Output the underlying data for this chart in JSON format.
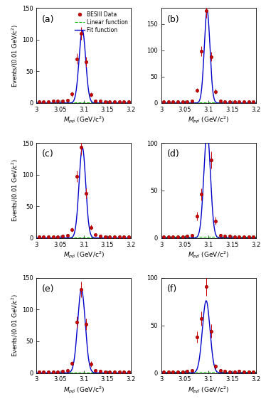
{
  "panels": [
    {
      "label": "(a)",
      "ylim": [
        0,
        150
      ],
      "yticks": [
        0,
        50,
        100,
        150
      ],
      "peak": 115,
      "peak_x": 3.097,
      "sigma": 0.007,
      "data_points": [
        [
          3.005,
          2,
          1.2
        ],
        [
          3.015,
          2,
          1.2
        ],
        [
          3.025,
          2,
          1.2
        ],
        [
          3.035,
          3,
          1.2
        ],
        [
          3.045,
          3,
          1.2
        ],
        [
          3.055,
          3,
          1.2
        ],
        [
          3.065,
          4,
          1.2
        ],
        [
          3.075,
          14,
          3.5
        ],
        [
          3.085,
          70,
          8
        ],
        [
          3.095,
          110,
          10
        ],
        [
          3.105,
          65,
          8
        ],
        [
          3.115,
          13,
          3.5
        ],
        [
          3.125,
          3,
          1.5
        ],
        [
          3.135,
          3,
          1.2
        ],
        [
          3.145,
          2,
          1.2
        ],
        [
          3.155,
          2,
          1.2
        ],
        [
          3.165,
          2,
          1.2
        ],
        [
          3.175,
          2,
          1.2
        ],
        [
          3.185,
          2,
          1.2
        ],
        [
          3.195,
          2,
          1.2
        ]
      ],
      "show_legend": true,
      "show_ylabel": true
    },
    {
      "label": "(b)",
      "ylim": [
        0,
        180
      ],
      "yticks": [
        0,
        50,
        100,
        150
      ],
      "peak": 175,
      "peak_x": 3.097,
      "sigma": 0.006,
      "data_points": [
        [
          3.005,
          2,
          1.2
        ],
        [
          3.015,
          2,
          1.2
        ],
        [
          3.025,
          2,
          1.2
        ],
        [
          3.035,
          2,
          1.2
        ],
        [
          3.045,
          2,
          1.2
        ],
        [
          3.055,
          3,
          1.2
        ],
        [
          3.065,
          4,
          1.2
        ],
        [
          3.075,
          24,
          4.5
        ],
        [
          3.085,
          98,
          9.5
        ],
        [
          3.095,
          175,
          13
        ],
        [
          3.105,
          88,
          9
        ],
        [
          3.115,
          22,
          4.5
        ],
        [
          3.125,
          4,
          1.5
        ],
        [
          3.135,
          3,
          1.2
        ],
        [
          3.145,
          2,
          1.2
        ],
        [
          3.155,
          2,
          1.2
        ],
        [
          3.165,
          2,
          1.2
        ],
        [
          3.175,
          2,
          1.2
        ],
        [
          3.185,
          2,
          1.2
        ],
        [
          3.195,
          2,
          1.2
        ]
      ],
      "show_legend": false,
      "show_ylabel": false
    },
    {
      "label": "(c)",
      "ylim": [
        0,
        150
      ],
      "yticks": [
        0,
        50,
        100,
        150
      ],
      "peak": 143,
      "peak_x": 3.097,
      "sigma": 0.007,
      "data_points": [
        [
          3.005,
          2,
          1.2
        ],
        [
          3.015,
          2,
          1.2
        ],
        [
          3.025,
          2,
          1.2
        ],
        [
          3.035,
          2,
          1.2
        ],
        [
          3.045,
          2,
          1.2
        ],
        [
          3.055,
          3,
          1.2
        ],
        [
          3.065,
          4,
          1.2
        ],
        [
          3.075,
          13,
          3.5
        ],
        [
          3.085,
          97,
          9
        ],
        [
          3.095,
          143,
          12
        ],
        [
          3.105,
          70,
          8
        ],
        [
          3.115,
          17,
          4
        ],
        [
          3.125,
          5,
          1.8
        ],
        [
          3.135,
          3,
          1.2
        ],
        [
          3.145,
          2,
          1.2
        ],
        [
          3.155,
          2,
          1.2
        ],
        [
          3.165,
          2,
          1.2
        ],
        [
          3.175,
          2,
          1.2
        ],
        [
          3.185,
          2,
          1.2
        ],
        [
          3.195,
          2,
          1.2
        ]
      ],
      "show_legend": false,
      "show_ylabel": true
    },
    {
      "label": "(d)",
      "ylim": [
        0,
        100
      ],
      "yticks": [
        0,
        50,
        100
      ],
      "peak": 112,
      "peak_x": 3.097,
      "sigma": 0.007,
      "data_points": [
        [
          3.005,
          1,
          1
        ],
        [
          3.015,
          1,
          1
        ],
        [
          3.025,
          1,
          1
        ],
        [
          3.035,
          1,
          1
        ],
        [
          3.045,
          1,
          1
        ],
        [
          3.055,
          2,
          1.2
        ],
        [
          3.065,
          3,
          1.2
        ],
        [
          3.075,
          23,
          4.5
        ],
        [
          3.085,
          46,
          6.5
        ],
        [
          3.095,
          112,
          10
        ],
        [
          3.105,
          82,
          9
        ],
        [
          3.115,
          18,
          4
        ],
        [
          3.125,
          3,
          1.2
        ],
        [
          3.135,
          2,
          1.2
        ],
        [
          3.145,
          2,
          1.2
        ],
        [
          3.155,
          1,
          1
        ],
        [
          3.165,
          1,
          1
        ],
        [
          3.175,
          1,
          1
        ],
        [
          3.185,
          1,
          1
        ],
        [
          3.195,
          1,
          1
        ]
      ],
      "show_legend": false,
      "show_ylabel": false
    },
    {
      "label": "(e)",
      "ylim": [
        0,
        150
      ],
      "yticks": [
        0,
        50,
        100,
        150
      ],
      "peak": 132,
      "peak_x": 3.095,
      "sigma": 0.008,
      "data_points": [
        [
          3.005,
          2,
          1.2
        ],
        [
          3.015,
          2,
          1.2
        ],
        [
          3.025,
          2,
          1.2
        ],
        [
          3.035,
          2,
          1.2
        ],
        [
          3.045,
          2,
          1.2
        ],
        [
          3.055,
          3,
          1.2
        ],
        [
          3.065,
          4,
          1.2
        ],
        [
          3.075,
          15,
          3.5
        ],
        [
          3.085,
          80,
          9
        ],
        [
          3.095,
          132,
          12
        ],
        [
          3.105,
          77,
          9
        ],
        [
          3.115,
          14,
          4
        ],
        [
          3.125,
          4,
          1.5
        ],
        [
          3.135,
          3,
          1.2
        ],
        [
          3.145,
          2,
          1.2
        ],
        [
          3.155,
          2,
          1.2
        ],
        [
          3.165,
          2,
          1.2
        ],
        [
          3.175,
          2,
          1.2
        ],
        [
          3.185,
          2,
          1.2
        ],
        [
          3.195,
          2,
          1.2
        ]
      ],
      "show_legend": false,
      "show_ylabel": true
    },
    {
      "label": "(f)",
      "ylim": [
        0,
        100
      ],
      "yticks": [
        0,
        50,
        100
      ],
      "peak": 76,
      "peak_x": 3.095,
      "sigma": 0.008,
      "data_points": [
        [
          3.005,
          1,
          1
        ],
        [
          3.015,
          1,
          1
        ],
        [
          3.025,
          1,
          1
        ],
        [
          3.035,
          1,
          1
        ],
        [
          3.045,
          1,
          1
        ],
        [
          3.055,
          2,
          1.2
        ],
        [
          3.065,
          3,
          1.2
        ],
        [
          3.075,
          38,
          6
        ],
        [
          3.085,
          57,
          7.5
        ],
        [
          3.095,
          91,
          9.5
        ],
        [
          3.105,
          44,
          7
        ],
        [
          3.115,
          7,
          2.5
        ],
        [
          3.125,
          3,
          1.2
        ],
        [
          3.135,
          2,
          1.2
        ],
        [
          3.145,
          1,
          1
        ],
        [
          3.155,
          1,
          1
        ],
        [
          3.165,
          2,
          1.2
        ],
        [
          3.175,
          1,
          1
        ],
        [
          3.185,
          1,
          1
        ],
        [
          3.195,
          1,
          1
        ]
      ],
      "show_legend": false,
      "show_ylabel": false
    }
  ],
  "xmin": 3.0,
  "xmax": 3.2,
  "xticks": [
    3.0,
    3.05,
    3.1,
    3.15,
    3.2
  ],
  "xticklabels": [
    "3",
    "3.05",
    "3.1",
    "3.15",
    "3.2"
  ],
  "data_color": "#cc0000",
  "linear_color": "#00bb00",
  "fit_color": "#0000cc",
  "background_color": "#ffffff",
  "legend_labels": [
    "BESIII Data",
    "Linear function",
    "Fit function"
  ]
}
